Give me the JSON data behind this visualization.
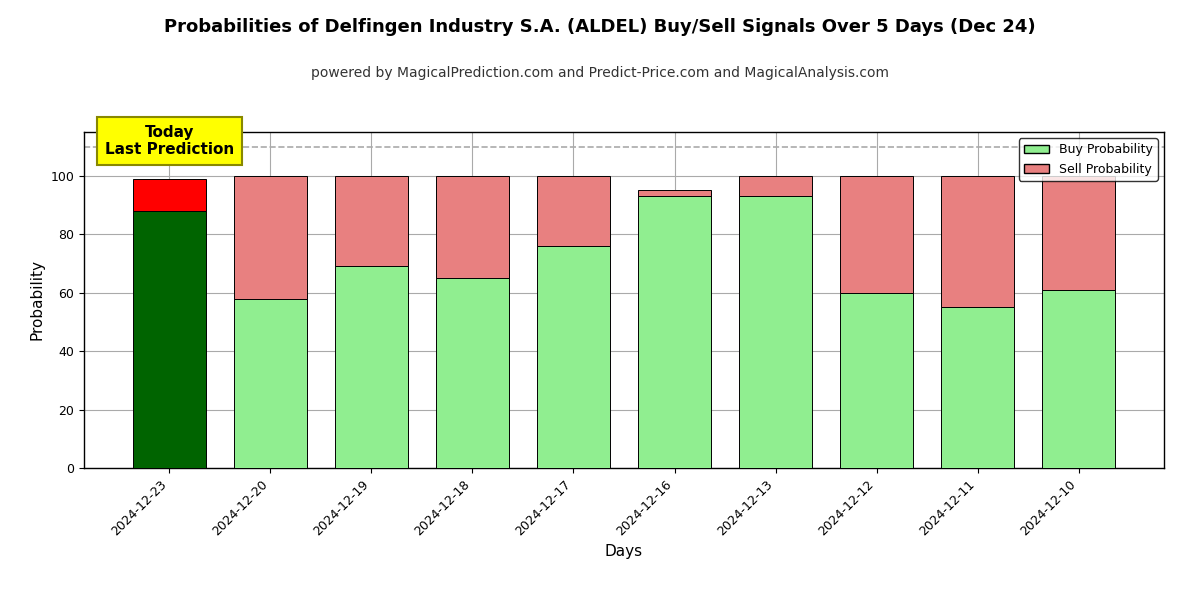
{
  "title": "Probabilities of Delfingen Industry S.A. (ALDEL) Buy/Sell Signals Over 5 Days (Dec 24)",
  "subtitle": "powered by MagicalPrediction.com and Predict-Price.com and MagicalAnalysis.com",
  "xlabel": "Days",
  "ylabel": "Probability",
  "dates": [
    "2024-12-23",
    "2024-12-20",
    "2024-12-19",
    "2024-12-18",
    "2024-12-17",
    "2024-12-16",
    "2024-12-13",
    "2024-12-12",
    "2024-12-11",
    "2024-12-10"
  ],
  "buy_values": [
    88,
    58,
    69,
    65,
    76,
    93,
    93,
    60,
    55,
    61
  ],
  "sell_values": [
    11,
    42,
    31,
    35,
    24,
    2,
    7,
    40,
    45,
    39
  ],
  "today_bar_buy_color": "#006400",
  "today_bar_sell_color": "#ff0000",
  "other_bar_buy_color": "#90ee90",
  "other_bar_sell_color": "#e88080",
  "bar_edge_color": "#000000",
  "ylim": [
    0,
    115
  ],
  "yticks": [
    0,
    20,
    40,
    60,
    80,
    100
  ],
  "dashed_line_y": 110,
  "annotation_text": "Today\nLast Prediction",
  "annotation_facecolor": "#ffff00",
  "annotation_edgecolor": "#888800",
  "legend_buy_label": "Buy Probability",
  "legend_sell_label": "Sell Probability",
  "title_fontsize": 13,
  "subtitle_fontsize": 10,
  "axis_label_fontsize": 11,
  "tick_fontsize": 9,
  "background_color": "#ffffff",
  "grid_color": "#aaaaaa"
}
